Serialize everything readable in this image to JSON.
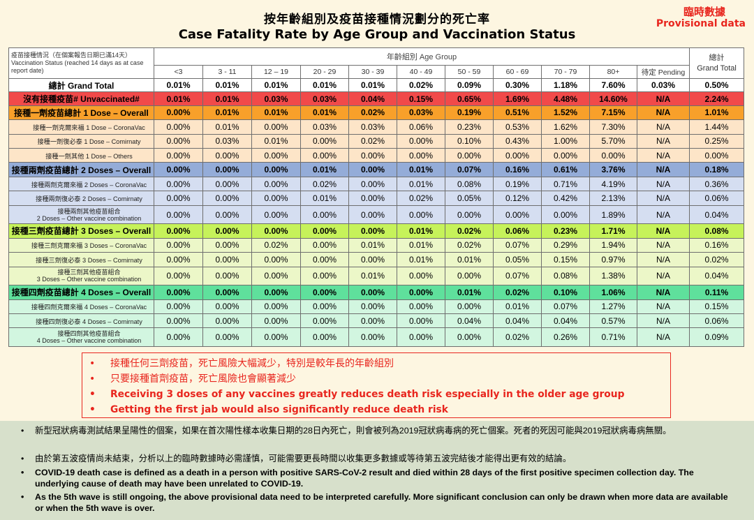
{
  "header": {
    "title_zh": "按年齡組別及疫苗接種情況劃分的死亡率",
    "title_en": "Case Fatality Rate by Age Group and Vaccination Status",
    "provisional_zh": "臨時數據",
    "provisional_en": "Provisional data"
  },
  "table": {
    "status_header": "疫苗接種情況（在個案報告日期已滿14天）\nVaccination Status (reached 14 days as at case report date)",
    "age_group_header": "年齡組別 Age Group",
    "total_header": "總計\nGrand Total",
    "age_groups": [
      "<3",
      "3 - 11",
      "12 – 19",
      "20 - 29",
      "30 - 39",
      "40 - 49",
      "50 - 59",
      "60 - 69",
      "70 - 79",
      "80+",
      "待定 Pending"
    ],
    "rows": [
      {
        "label": "總計 Grand Total",
        "values": [
          "0.01%",
          "0.01%",
          "0.01%",
          "0.01%",
          "0.01%",
          "0.02%",
          "0.09%",
          "0.30%",
          "1.18%",
          "7.60%",
          "0.03%"
        ],
        "total": "0.50%"
      },
      {
        "label": "沒有接種疫苗# Unvaccinated#",
        "values": [
          "0.01%",
          "0.01%",
          "0.03%",
          "0.03%",
          "0.04%",
          "0.15%",
          "0.65%",
          "1.69%",
          "4.48%",
          "14.60%",
          "N/A"
        ],
        "total": "2.24%"
      },
      {
        "label": "接種一劑疫苗總計 1 Dose – Overall",
        "values": [
          "0.00%",
          "0.01%",
          "0.01%",
          "0.01%",
          "0.02%",
          "0.03%",
          "0.19%",
          "0.51%",
          "1.52%",
          "7.15%",
          "N/A"
        ],
        "total": "1.01%"
      },
      {
        "label": "接種一劑克爾來福 1 Dose – CoronaVac",
        "values": [
          "0.00%",
          "0.01%",
          "0.00%",
          "0.03%",
          "0.03%",
          "0.06%",
          "0.23%",
          "0.53%",
          "1.62%",
          "7.30%",
          "N/A"
        ],
        "total": "1.44%"
      },
      {
        "label": "接種一劑復必泰 1 Dose – Comirnaty",
        "values": [
          "0.00%",
          "0.03%",
          "0.01%",
          "0.00%",
          "0.02%",
          "0.00%",
          "0.10%",
          "0.43%",
          "1.00%",
          "5.70%",
          "N/A"
        ],
        "total": "0.25%"
      },
      {
        "label": "接種一劑其他 1 Dose – Others",
        "values": [
          "0.00%",
          "0.00%",
          "0.00%",
          "0.00%",
          "0.00%",
          "0.00%",
          "0.00%",
          "0.00%",
          "0.00%",
          "0.00%",
          "N/A"
        ],
        "total": "0.00%"
      },
      {
        "label": "接種兩劑疫苗總計 2 Doses – Overall",
        "values": [
          "0.00%",
          "0.00%",
          "0.00%",
          "0.01%",
          "0.00%",
          "0.01%",
          "0.07%",
          "0.16%",
          "0.61%",
          "3.76%",
          "N/A"
        ],
        "total": "0.18%"
      },
      {
        "label": "接種兩劑克爾來福 2 Doses – CoronaVac",
        "values": [
          "0.00%",
          "0.00%",
          "0.00%",
          "0.02%",
          "0.00%",
          "0.01%",
          "0.08%",
          "0.19%",
          "0.71%",
          "4.19%",
          "N/A"
        ],
        "total": "0.36%"
      },
      {
        "label": "接種兩劑復必泰 2 Doses – Comirnaty",
        "values": [
          "0.00%",
          "0.00%",
          "0.00%",
          "0.01%",
          "0.00%",
          "0.02%",
          "0.05%",
          "0.12%",
          "0.42%",
          "2.13%",
          "N/A"
        ],
        "total": "0.06%"
      },
      {
        "label": "接種兩劑其他疫苗組合\n2 Doses – Other vaccine combination",
        "values": [
          "0.00%",
          "0.00%",
          "0.00%",
          "0.00%",
          "0.00%",
          "0.00%",
          "0.00%",
          "0.00%",
          "0.00%",
          "1.89%",
          "N/A"
        ],
        "total": "0.04%"
      },
      {
        "label": "接種三劑疫苗總計 3 Doses – Overall",
        "values": [
          "0.00%",
          "0.00%",
          "0.00%",
          "0.00%",
          "0.00%",
          "0.01%",
          "0.02%",
          "0.06%",
          "0.23%",
          "1.71%",
          "N/A"
        ],
        "total": "0.08%"
      },
      {
        "label": "接種三劑克爾來福 3 Doses – CoronaVac",
        "values": [
          "0.00%",
          "0.00%",
          "0.02%",
          "0.00%",
          "0.01%",
          "0.01%",
          "0.02%",
          "0.07%",
          "0.29%",
          "1.94%",
          "N/A"
        ],
        "total": "0.16%"
      },
      {
        "label": "接種三劑復必泰 3 Doses – Comirnaty",
        "values": [
          "0.00%",
          "0.00%",
          "0.00%",
          "0.00%",
          "0.00%",
          "0.01%",
          "0.01%",
          "0.05%",
          "0.15%",
          "0.97%",
          "N/A"
        ],
        "total": "0.02%"
      },
      {
        "label": "接種三劑其他疫苗組合\n3 Doses – Other vaccine combination",
        "values": [
          "0.00%",
          "0.00%",
          "0.00%",
          "0.00%",
          "0.01%",
          "0.00%",
          "0.00%",
          "0.07%",
          "0.08%",
          "1.38%",
          "N/A"
        ],
        "total": "0.04%"
      },
      {
        "label": "接種四劑疫苗總計 4 Doses – Overall",
        "values": [
          "0.00%",
          "0.00%",
          "0.00%",
          "0.00%",
          "0.00%",
          "0.00%",
          "0.01%",
          "0.02%",
          "0.10%",
          "1.06%",
          "N/A"
        ],
        "total": "0.11%"
      },
      {
        "label": "接種四劑克爾來福 4 Doses – CoronaVac",
        "values": [
          "0.00%",
          "0.00%",
          "0.00%",
          "0.00%",
          "0.00%",
          "0.00%",
          "0.00%",
          "0.01%",
          "0.07%",
          "1.27%",
          "N/A"
        ],
        "total": "0.15%"
      },
      {
        "label": "接種四劑復必泰 4 Doses – Comirnaty",
        "values": [
          "0.00%",
          "0.00%",
          "0.00%",
          "0.00%",
          "0.00%",
          "0.00%",
          "0.04%",
          "0.04%",
          "0.04%",
          "0.57%",
          "N/A"
        ],
        "total": "0.06%"
      },
      {
        "label": "接種四劑其他疫苗組合\n4 Doses – Other vaccine combination",
        "values": [
          "0.00%",
          "0.00%",
          "0.00%",
          "0.00%",
          "0.00%",
          "0.00%",
          "0.00%",
          "0.02%",
          "0.26%",
          "0.71%",
          "N/A"
        ],
        "total": "0.09%"
      }
    ]
  },
  "key_points": [
    "接種任何三劑疫苗，死亡風險大幅減少，特別是較年長的年齡組別",
    "只要接種首劑疫苗，死亡風險也會顯著減少",
    "Receiving 3 doses of any vaccines greatly reduces death risk especially in the older age group",
    "Getting the first jab would also significantly reduce death risk"
  ],
  "notes": [
    "新型冠狀病毒測試結果呈陽性的個案，如果在首次陽性樣本收集日期的28日內死亡，則會被列為2019冠狀病毒病的死亡個案。死者的死因可能與2019冠狀病毒病無關。",
    "由於第五波疫情尚未結束，分析以上的臨時數據時必需謹慎，可能需要更長時間以收集更多數據或等待第五波完結後才能得出更有效的結論。",
    "COVID-19 death case is defined as a death in a person with positive SARS-CoV-2 result and died within 28 days of the first positive specimen collection day. The underlying cause of death may have been unrelated to COVID-19.",
    "As the 5th wave is still ongoing, the above provisional data need to be interpreted carefully. More significant conclusion can only be drawn when more data are available or when the 5th wave is over."
  ],
  "bullet_char": "•"
}
